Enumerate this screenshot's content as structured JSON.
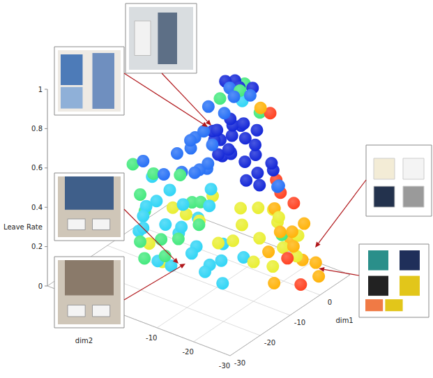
{
  "chart_data": {
    "type": "scatter3d",
    "x_label": "dim1",
    "y_label": "dim2",
    "z_label": "Leave Rate",
    "xlim": [
      -30,
      10
    ],
    "xticks": [
      -30,
      -20,
      -10,
      0
    ],
    "ylim": [
      -30,
      20
    ],
    "yticks": [
      -30,
      -20,
      -10
    ],
    "zlim": [
      0,
      1
    ],
    "zticks": [
      0,
      0.2,
      0.4,
      0.6,
      0.8,
      1
    ],
    "grid": true,
    "series": [
      {
        "color": "#0b1fd6",
        "values": [
          [
            -8,
            -12,
            0.85
          ],
          [
            -6,
            -14,
            0.82
          ],
          [
            -10,
            -10,
            0.8
          ],
          [
            -4,
            -16,
            0.78
          ],
          [
            -7,
            -18,
            0.75
          ],
          [
            -9,
            -8,
            0.77
          ],
          [
            -5,
            -10,
            0.72
          ],
          [
            -3,
            -12,
            0.7
          ],
          [
            -11,
            -14,
            0.74
          ],
          [
            -6,
            -6,
            0.68
          ],
          [
            -8,
            -16,
            0.66
          ],
          [
            -4,
            -20,
            0.64
          ],
          [
            -2,
            -14,
            0.62
          ],
          [
            -10,
            -18,
            0.6
          ],
          [
            -7,
            -9,
            0.63
          ],
          [
            -5,
            -17,
            0.58
          ],
          [
            -3,
            -8,
            0.6
          ],
          [
            -9,
            -13,
            0.69
          ],
          [
            -6,
            -11,
            0.79
          ],
          [
            -12,
            -12,
            0.71
          ],
          [
            -1,
            -18,
            0.56
          ],
          [
            -4,
            -6,
            0.66
          ],
          [
            -8,
            -20,
            0.57
          ],
          [
            -2,
            -10,
            0.74
          ],
          [
            -5,
            -12,
            0.98
          ],
          [
            -3,
            -14,
            0.97
          ],
          [
            -6,
            -9,
            1.0
          ],
          [
            -4,
            -10,
            0.99
          ]
        ]
      },
      {
        "color": "#1f6bf5",
        "values": [
          [
            -12,
            -8,
            0.8
          ],
          [
            -14,
            -6,
            0.76
          ],
          [
            -10,
            -4,
            0.72
          ],
          [
            -13,
            -10,
            0.66
          ],
          [
            -15,
            -8,
            0.62
          ],
          [
            -11,
            -6,
            0.58
          ],
          [
            -9,
            -2,
            0.64
          ],
          [
            -16,
            -4,
            0.7
          ],
          [
            -12,
            -2,
            0.55
          ],
          [
            -6,
            -4,
            0.52
          ],
          [
            -14,
            -12,
            0.78
          ],
          [
            -8,
            -6,
            0.87
          ],
          [
            -10,
            -12,
            0.9
          ],
          [
            -18,
            -2,
            0.6
          ],
          [
            -2,
            -20,
            0.5
          ],
          [
            -4,
            -22,
            0.54
          ],
          [
            -7,
            -11,
            0.99
          ],
          [
            -5,
            -15,
            0.96
          ],
          [
            -8,
            -13,
            0.97
          ],
          [
            -20,
            2,
            0.66
          ]
        ]
      },
      {
        "color": "#29d3f5",
        "values": [
          [
            -16,
            -2,
            0.5
          ],
          [
            -18,
            0,
            0.45
          ],
          [
            -14,
            -4,
            0.42
          ],
          [
            -20,
            2,
            0.38
          ],
          [
            -17,
            -6,
            0.35
          ],
          [
            -15,
            0,
            0.3
          ],
          [
            -19,
            4,
            0.28
          ],
          [
            -13,
            -2,
            0.25
          ],
          [
            -16,
            -8,
            0.22
          ],
          [
            -12,
            -6,
            0.2
          ],
          [
            -18,
            -4,
            0.15
          ],
          [
            -14,
            -10,
            0.12
          ],
          [
            -10,
            -8,
            0.1
          ],
          [
            -20,
            -2,
            0.18
          ],
          [
            -20,
            2,
            0.32
          ],
          [
            -11,
            -12,
            0.16
          ],
          [
            -8,
            -10,
            0.2
          ],
          [
            -6,
            -14,
            0.14
          ],
          [
            -13,
            -14,
            0.08
          ],
          [
            -17,
            2,
            0.55
          ],
          [
            -19,
            2,
            0.42
          ],
          [
            -9,
            -4,
            0.3
          ],
          [
            -4,
            -12,
            0.9
          ],
          [
            -15,
            -12,
            0.48
          ],
          [
            -12,
            -10,
            0.52
          ]
        ]
      },
      {
        "color": "#3ee87a",
        "values": [
          [
            -19,
            0,
            0.6
          ],
          [
            -21,
            2,
            0.5
          ],
          [
            -17,
            4,
            0.36
          ],
          [
            -21,
            2,
            0.26
          ],
          [
            -15,
            -4,
            0.58
          ],
          [
            -13,
            -8,
            0.45
          ],
          [
            -18,
            -6,
            0.3
          ],
          [
            -11,
            -4,
            0.4
          ],
          [
            -16,
            -10,
            0.38
          ],
          [
            -20,
            -4,
            0.22
          ],
          [
            -14,
            2,
            0.2
          ],
          [
            -22,
            0,
            0.2
          ],
          [
            -6,
            -13,
            0.98
          ],
          [
            -2,
            -11,
            0.96
          ],
          [
            -9,
            -10,
            0.95
          ],
          [
            -3,
            -16,
            0.86
          ],
          [
            -21,
            4,
            0.64
          ],
          [
            -3,
            -22,
            0.28
          ]
        ]
      },
      {
        "color": "#e8ee2a",
        "values": [
          [
            -6,
            -18,
            0.42
          ],
          [
            -4,
            -22,
            0.38
          ],
          [
            -8,
            -20,
            0.3
          ],
          [
            -5,
            -24,
            0.25
          ],
          [
            -9,
            -16,
            0.35
          ],
          [
            -2,
            -20,
            0.32
          ],
          [
            -7,
            -14,
            0.4
          ],
          [
            -10,
            -20,
            0.2
          ],
          [
            -3,
            -26,
            0.2
          ],
          [
            -12,
            -16,
            0.3
          ],
          [
            -11,
            -6,
            0.32
          ],
          [
            -13,
            -4,
            0.36
          ],
          [
            -9,
            -8,
            0.44
          ],
          [
            -15,
            -2,
            0.4
          ],
          [
            -18,
            2,
            0.22
          ],
          [
            -16,
            0,
            0.12
          ],
          [
            -12,
            -12,
            0.26
          ],
          [
            -6,
            -22,
            0.15
          ],
          [
            0,
            -24,
            0.26
          ],
          [
            -1,
            -18,
            0.36
          ]
        ]
      },
      {
        "color": "#ffb000",
        "values": [
          [
            -2,
            -24,
            0.3
          ],
          [
            0,
            -22,
            0.22
          ],
          [
            -4,
            -26,
            0.26
          ],
          [
            -1,
            -26,
            0.16
          ],
          [
            -6,
            -24,
            0.34
          ],
          [
            2,
            -24,
            0.3
          ],
          [
            -3,
            -20,
            0.4
          ],
          [
            -5,
            -20,
            0.2
          ],
          [
            1,
            -28,
            0.14
          ],
          [
            -8,
            -24,
            0.1
          ],
          [
            2,
            -28,
            0.06
          ],
          [
            -4,
            -17,
            0.9
          ]
        ]
      },
      {
        "color": "#ff3b1a",
        "values": [
          [
            -1,
            -20,
            0.46
          ],
          [
            0,
            -18,
            0.5
          ],
          [
            1,
            -22,
            0.4
          ],
          [
            -6,
            -26,
            0.22
          ],
          [
            -4,
            -28,
            0.08
          ],
          [
            -2,
            -18,
            0.86
          ]
        ]
      }
    ]
  }
}
